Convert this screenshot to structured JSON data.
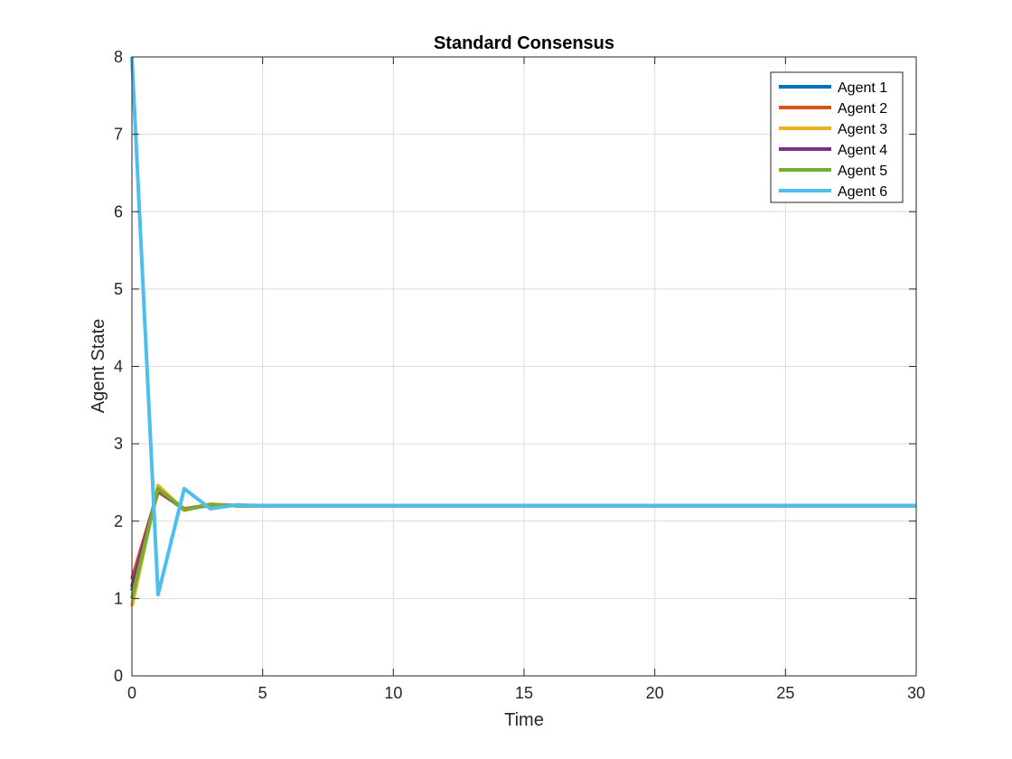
{
  "chart_data": {
    "type": "line",
    "title": "Standard Consensus",
    "xlabel": "Time",
    "ylabel": "Agent State",
    "xlim": [
      0,
      30
    ],
    "ylim": [
      0,
      8
    ],
    "xticks": [
      0,
      5,
      10,
      15,
      20,
      25,
      30
    ],
    "yticks": [
      0,
      1,
      2,
      3,
      4,
      5,
      6,
      7,
      8
    ],
    "xtick_labels": [
      "0",
      "5",
      "10",
      "15",
      "20",
      "25",
      "30"
    ],
    "ytick_labels": [
      "0",
      "1",
      "2",
      "3",
      "4",
      "5",
      "6",
      "7",
      "8"
    ],
    "grid": true,
    "legend_position": "top-right",
    "x": [
      0,
      1,
      2,
      3,
      4,
      5,
      6,
      7,
      8,
      9,
      10,
      11,
      12,
      13,
      14,
      15,
      16,
      17,
      18,
      19,
      20,
      21,
      22,
      23,
      24,
      25,
      26,
      27,
      28,
      29,
      30
    ],
    "series": [
      {
        "name": "Agent 1",
        "color": "#0072BD",
        "values": [
          1.1,
          2.4,
          2.15,
          2.21,
          2.2,
          2.2,
          2.2,
          2.2,
          2.2,
          2.2,
          2.2,
          2.2,
          2.2,
          2.2,
          2.2,
          2.2,
          2.2,
          2.2,
          2.2,
          2.2,
          2.2,
          2.2,
          2.2,
          2.2,
          2.2,
          2.2,
          2.2,
          2.2,
          2.2,
          2.2,
          2.2
        ]
      },
      {
        "name": "Agent 2",
        "color": "#D95319",
        "values": [
          1.25,
          2.38,
          2.16,
          2.21,
          2.2,
          2.2,
          2.2,
          2.2,
          2.2,
          2.2,
          2.2,
          2.2,
          2.2,
          2.2,
          2.2,
          2.2,
          2.2,
          2.2,
          2.2,
          2.2,
          2.2,
          2.2,
          2.2,
          2.2,
          2.2,
          2.2,
          2.2,
          2.2,
          2.2,
          2.2,
          2.2
        ]
      },
      {
        "name": "Agent 3",
        "color": "#EDB120",
        "values": [
          0.9,
          2.46,
          2.14,
          2.22,
          2.2,
          2.2,
          2.2,
          2.2,
          2.2,
          2.2,
          2.2,
          2.2,
          2.2,
          2.2,
          2.2,
          2.2,
          2.2,
          2.2,
          2.2,
          2.2,
          2.2,
          2.2,
          2.2,
          2.2,
          2.2,
          2.2,
          2.2,
          2.2,
          2.2,
          2.2,
          2.2
        ]
      },
      {
        "name": "Agent 4",
        "color": "#7E2F8E",
        "values": [
          1.15,
          2.4,
          2.15,
          2.21,
          2.2,
          2.2,
          2.2,
          2.2,
          2.2,
          2.2,
          2.2,
          2.2,
          2.2,
          2.2,
          2.2,
          2.2,
          2.2,
          2.2,
          2.2,
          2.2,
          2.2,
          2.2,
          2.2,
          2.2,
          2.2,
          2.2,
          2.2,
          2.2,
          2.2,
          2.2,
          2.2
        ]
      },
      {
        "name": "Agent 5",
        "color": "#77AC30",
        "values": [
          1.0,
          2.42,
          2.15,
          2.21,
          2.2,
          2.2,
          2.2,
          2.2,
          2.2,
          2.2,
          2.2,
          2.2,
          2.2,
          2.2,
          2.2,
          2.2,
          2.2,
          2.2,
          2.2,
          2.2,
          2.2,
          2.2,
          2.2,
          2.2,
          2.2,
          2.2,
          2.2,
          2.2,
          2.2,
          2.2,
          2.2
        ]
      },
      {
        "name": "Agent 6",
        "color": "#4DBEEE",
        "values": [
          8.0,
          1.05,
          2.42,
          2.16,
          2.21,
          2.2,
          2.2,
          2.2,
          2.2,
          2.2,
          2.2,
          2.2,
          2.2,
          2.2,
          2.2,
          2.2,
          2.2,
          2.2,
          2.2,
          2.2,
          2.2,
          2.2,
          2.2,
          2.2,
          2.2,
          2.2,
          2.2,
          2.2,
          2.2,
          2.2,
          2.2
        ]
      }
    ]
  }
}
